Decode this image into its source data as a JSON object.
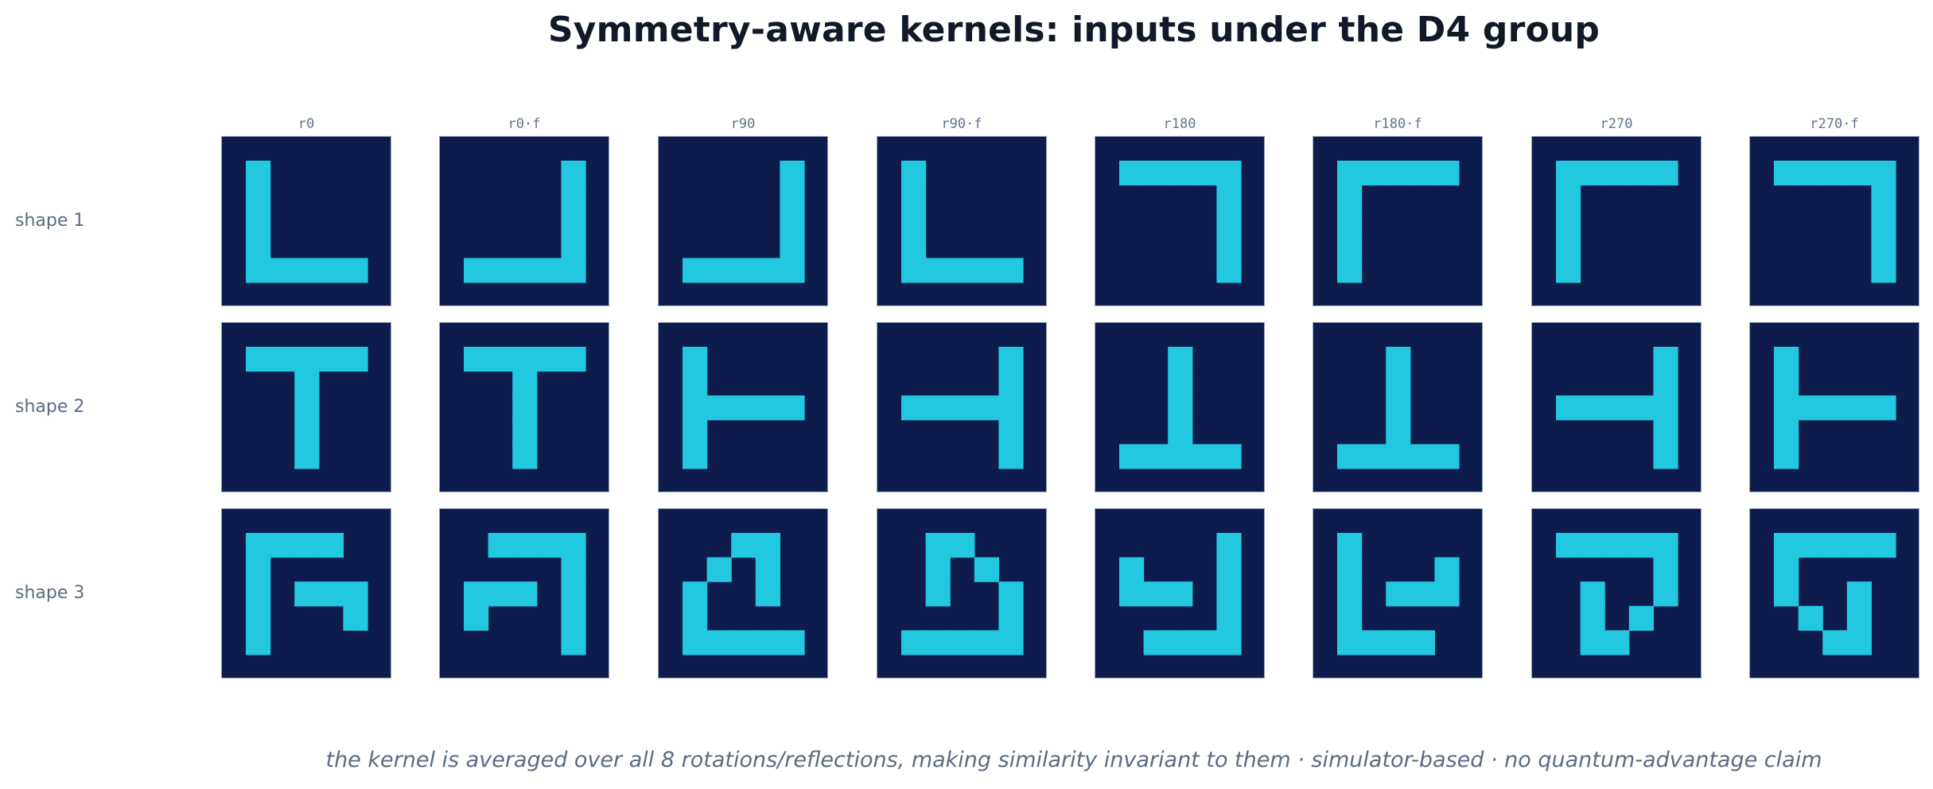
{
  "title": "Symmetry-aware kernels: inputs under the D4 group",
  "columns": [
    "r0",
    "r0·f",
    "r90",
    "r90·f",
    "r180",
    "r180·f",
    "r270",
    "r270·f"
  ],
  "rows": [
    "shape 1",
    "shape 2",
    "shape 3"
  ],
  "footer": "the kernel is averaged over all 8 rotations/reflections, making similarity invariant to them · simulator-based · no quantum-advantage claim",
  "colors": {
    "tile_bg": "#0e1c4d",
    "cell_on": "#22c7e0",
    "tile_border": "#94a3b8"
  },
  "grid_size": 5,
  "grids": [
    [
      [
        "10000",
        "10000",
        "10000",
        "10000",
        "11111"
      ],
      [
        "00001",
        "00001",
        "00001",
        "00001",
        "11111"
      ],
      [
        "00001",
        "00001",
        "00001",
        "00001",
        "11111"
      ],
      [
        "10000",
        "10000",
        "10000",
        "10000",
        "11111"
      ],
      [
        "11111",
        "00001",
        "00001",
        "00001",
        "00001"
      ],
      [
        "11111",
        "10000",
        "10000",
        "10000",
        "10000"
      ],
      [
        "11111",
        "10000",
        "10000",
        "10000",
        "10000"
      ],
      [
        "11111",
        "00001",
        "00001",
        "00001",
        "00001"
      ]
    ],
    [
      [
        "11111",
        "00100",
        "00100",
        "00100",
        "00100"
      ],
      [
        "11111",
        "00100",
        "00100",
        "00100",
        "00100"
      ],
      [
        "10000",
        "10000",
        "11111",
        "10000",
        "10000"
      ],
      [
        "00001",
        "00001",
        "11111",
        "00001",
        "00001"
      ],
      [
        "00100",
        "00100",
        "00100",
        "00100",
        "11111"
      ],
      [
        "00100",
        "00100",
        "00100",
        "00100",
        "11111"
      ],
      [
        "00001",
        "00001",
        "11111",
        "00001",
        "00001"
      ],
      [
        "10000",
        "10000",
        "11111",
        "10000",
        "10000"
      ]
    ],
    [
      [
        "11110",
        "10000",
        "10111",
        "10001",
        "10000"
      ],
      [
        "01111",
        "00001",
        "11101",
        "10001",
        "00001"
      ],
      [
        "00110",
        "01010",
        "10010",
        "10000",
        "11111"
      ],
      [
        "01100",
        "01010",
        "01001",
        "00001",
        "11111"
      ],
      [
        "00001",
        "10001",
        "11101",
        "00001",
        "01111"
      ],
      [
        "10000",
        "10001",
        "10111",
        "10000",
        "11110"
      ],
      [
        "11111",
        "00001",
        "01001",
        "01010",
        "01100"
      ],
      [
        "11111",
        "10000",
        "10010",
        "01010",
        "00110"
      ]
    ]
  ]
}
